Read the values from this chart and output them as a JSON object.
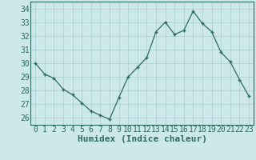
{
  "x": [
    0,
    1,
    2,
    3,
    4,
    5,
    6,
    7,
    8,
    9,
    10,
    11,
    12,
    13,
    14,
    15,
    16,
    17,
    18,
    19,
    20,
    21,
    22,
    23
  ],
  "y": [
    30.0,
    29.2,
    28.9,
    28.1,
    27.7,
    27.1,
    26.5,
    26.2,
    25.9,
    27.5,
    29.0,
    29.7,
    30.4,
    32.3,
    33.0,
    32.1,
    32.4,
    33.8,
    32.9,
    32.3,
    30.8,
    30.1,
    28.8,
    27.6
  ],
  "xlabel": "Humidex (Indice chaleur)",
  "xlim": [
    -0.5,
    23.5
  ],
  "ylim": [
    25.5,
    34.5
  ],
  "yticks": [
    26,
    27,
    28,
    29,
    30,
    31,
    32,
    33,
    34
  ],
  "xticks": [
    0,
    1,
    2,
    3,
    4,
    5,
    6,
    7,
    8,
    9,
    10,
    11,
    12,
    13,
    14,
    15,
    16,
    17,
    18,
    19,
    20,
    21,
    22,
    23
  ],
  "line_color": "#2e6b5e",
  "marker": "+",
  "bg_color": "#cce8ea",
  "grid_color": "#aacdd0",
  "xlabel_fontsize": 8,
  "tick_fontsize": 7
}
